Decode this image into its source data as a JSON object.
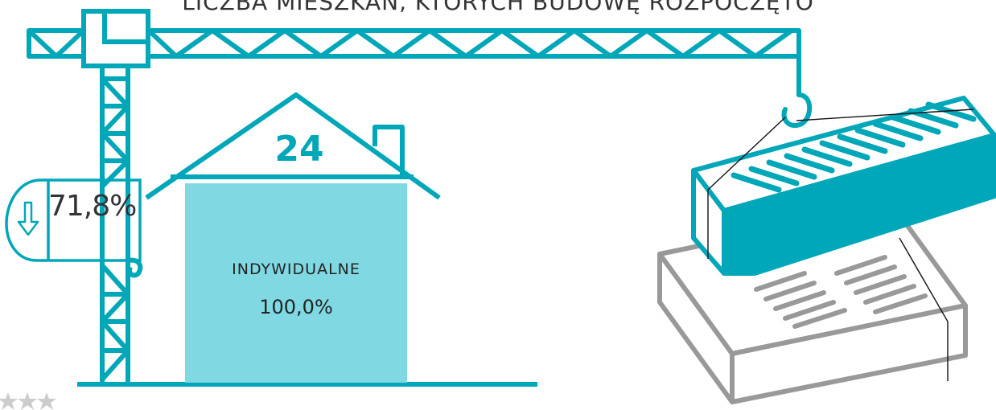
{
  "header": {
    "title": "LICZBA MIESZKAŃ, KTÓRYCH BUDOWĘ ROZPOCZĘTO"
  },
  "dwellings": {
    "count": "24",
    "change": "71,8%",
    "change_direction_icon": "arrow-down-icon",
    "category_label": "INDYWIDUALNE",
    "category_share": "100,0%"
  },
  "colors": {
    "accent": "#00a7b8",
    "fill_light": "#7fd8e2",
    "grey": "#999999",
    "text": "#333333"
  }
}
